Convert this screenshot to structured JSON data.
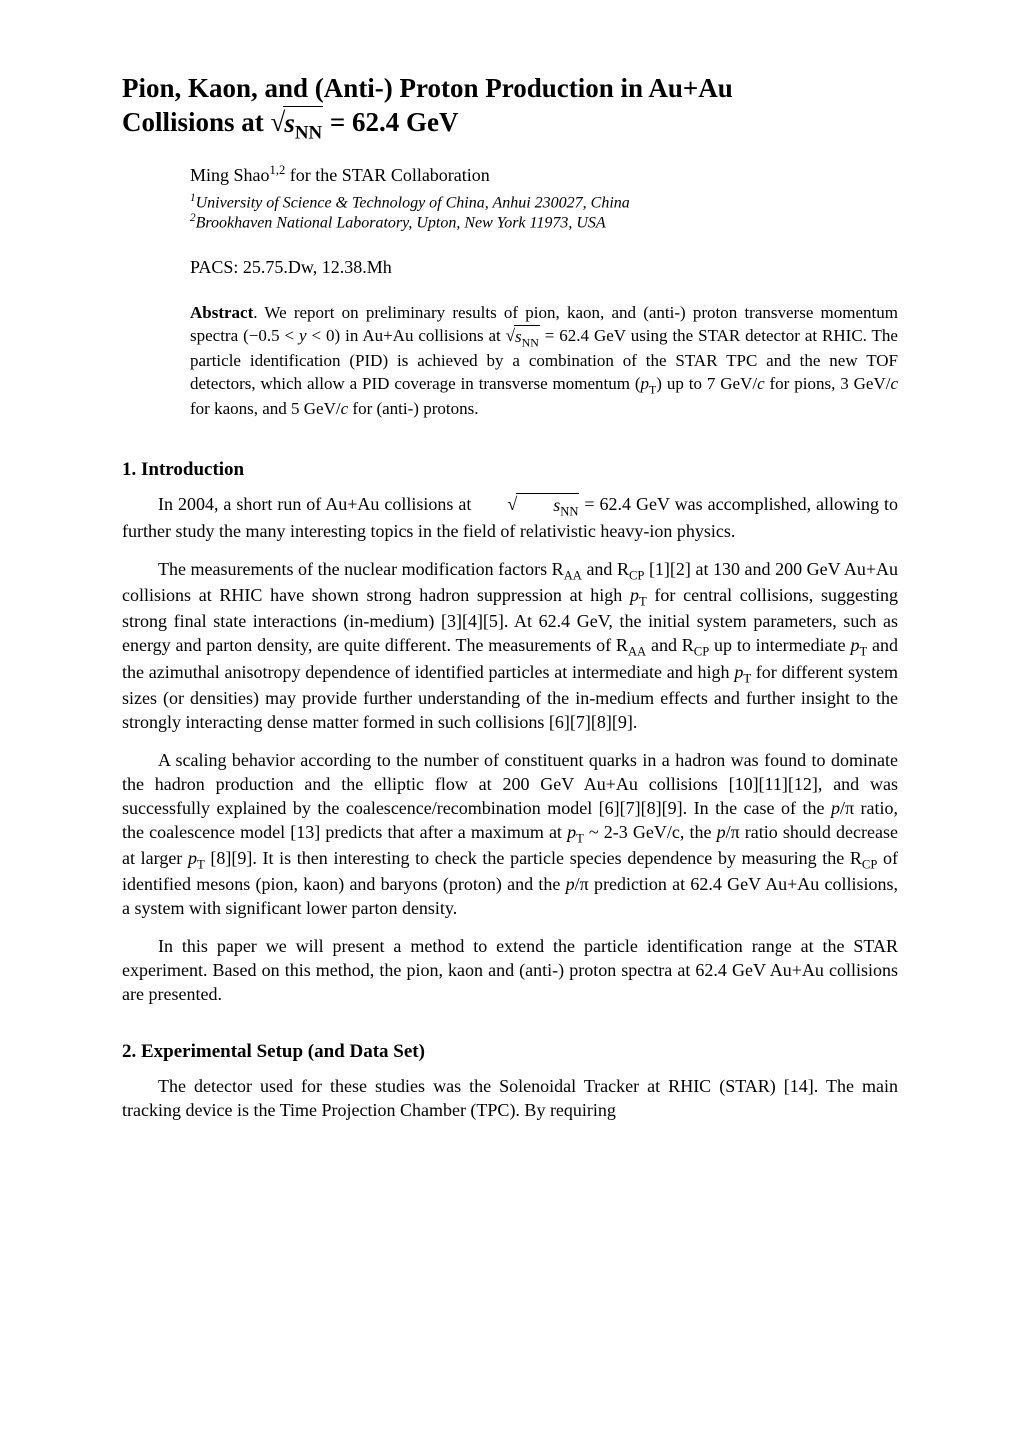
{
  "title_line1": "Pion, Kaon, and (Anti-) Proton Production in Au+Au",
  "title_line2a": "Collisions at ",
  "title_sqrt_var": "s",
  "title_sqrt_sub": "NN",
  "title_line2b": " = 62.4 GeV",
  "author_name": "Ming Shao",
  "author_sup": "1,2",
  "author_rest": " for the STAR Collaboration",
  "affil1_sup": "1",
  "affil1_text": "University of Science & Technology of China, Anhui 230027, China",
  "affil2_sup": "2",
  "affil2_text": "Brookhaven National Laboratory, Upton, New York 11973, USA",
  "pacs": "PACS: 25.75.Dw, 12.38.Mh",
  "abstract_label": "Abstract",
  "abstract_a": ".  We report on preliminary results of pion, kaon, and (anti-) proton transverse momentum spectra (−0.5 < ",
  "abstract_y": "y",
  "abstract_b": " < 0) in Au+Au collisions at ",
  "abstract_sqrt_var": "s",
  "abstract_sqrt_sub": "NN",
  "abstract_c": " = 62.4 GeV using the STAR detector at RHIC. The particle identification (PID) is achieved by a combination of the STAR TPC and the new TOF detectors, which allow a PID coverage in transverse momentum (",
  "abstract_pT": "p",
  "abstract_pT_sub": "T",
  "abstract_d": ") up to 7 GeV/",
  "abstract_c1": "c",
  "abstract_e": " for pions, 3 GeV/",
  "abstract_c2": "c",
  "abstract_f": " for kaons, and 5 GeV/",
  "abstract_c3": "c",
  "abstract_g": " for (anti-) protons.",
  "section1_heading": "1. Introduction",
  "p1_a": "In 2004, a short run of Au+Au collisions at",
  "p1_sqrt_var": "s",
  "p1_sqrt_sub": "NN",
  "p1_b": " = 62.4 GeV was accomplished, allowing to further study the many interesting topics in the field of relativistic heavy-ion physics.",
  "p2_a": "The measurements of the nuclear modification factors R",
  "p2_AA1": "AA",
  "p2_b": " and R",
  "p2_CP1": "CP",
  "p2_c": " [1][2] at 130 and 200 GeV Au+Au collisions at RHIC have shown strong hadron suppression at high ",
  "p2_pT1": "p",
  "p2_pT1_sub": "T",
  "p2_d": " for central collisions, suggesting strong final state interactions (in-medium) [3][4][5]. At 62.4 GeV, the initial system parameters, such as energy and parton density, are quite different. The measurements of R",
  "p2_AA2": "AA",
  "p2_e": " and R",
  "p2_CP2": "CP",
  "p2_f": " up to intermediate ",
  "p2_pT2": "p",
  "p2_pT2_sub": "T",
  "p2_g": " and the azimuthal anisotropy dependence of identified particles at intermediate and high ",
  "p2_pT3": "p",
  "p2_pT3_sub": "T",
  "p2_h": " for different system sizes (or densities) may provide further understanding of the in-medium effects and further insight to the strongly interacting dense matter formed in such collisions [6][7][8][9].",
  "p3_a": "A scaling behavior according to the number of constituent quarks in a hadron was found to dominate the hadron production and the elliptic flow at 200 GeV Au+Au collisions [10][11][12], and was successfully explained by the coalescence/recombination model [6][7][8][9]. In the case of the ",
  "p3_p1": "p",
  "p3_slash1": "/π ratio, the coalescence model [13] predicts that after a maximum at ",
  "p3_pT": "p",
  "p3_pT_sub": "T",
  "p3_b": " ~ 2-3 GeV/c, the ",
  "p3_p2": "p",
  "p3_slash2": "/π  ratio should decrease at larger ",
  "p3_pT2": "p",
  "p3_pT2_sub": "T",
  "p3_c": " [8][9].  It is then interesting to check the particle species dependence by measuring the R",
  "p3_CP": "CP",
  "p3_d": " of identified mesons (pion, kaon) and baryons (proton) and the ",
  "p3_p3": "p",
  "p3_e": "/π prediction at 62.4 GeV Au+Au collisions, a system with significant lower parton density.",
  "p4": "In this paper we will present a method to extend the particle identification range at the STAR experiment. Based on this method, the pion, kaon and (anti-) proton spectra at 62.4 GeV Au+Au collisions are presented.",
  "section2_heading": "2. Experimental Setup (and Data Set)",
  "p5": "The detector used for these studies was the Solenoidal Tracker at RHIC (STAR) [14]. The main tracking device is the Time Projection Chamber (TPC). By requiring"
}
